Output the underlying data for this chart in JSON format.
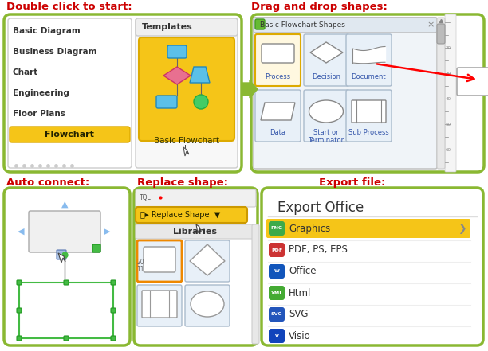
{
  "background_color": "#ffffff",
  "green_border": "#8ab832",
  "red_color": "#cc0000",
  "gold_color": "#f5c518",
  "section_titles": {
    "double_click": "Double click to start:",
    "drag_drop": "Drag and drop shapes:",
    "auto_connect": "Auto connect:",
    "replace_shape": "Replace shape:",
    "export_file": "Export file:"
  },
  "left_panel_items": [
    "Basic Diagram",
    "Business Diagram",
    "Chart",
    "Engineering",
    "Floor Plans",
    "Flowchart"
  ],
  "export_items": [
    "Graphics",
    "PDF, PS, EPS",
    "Office",
    "Html",
    "SVG",
    "Visio"
  ],
  "icon_colors": [
    "#3daa4a",
    "#dd3333",
    "#1155bb",
    "#44aa33",
    "#2255bb",
    "#1144bb"
  ],
  "icon_labels": [
    "",
    "",
    "W",
    "",
    "",
    "V"
  ]
}
